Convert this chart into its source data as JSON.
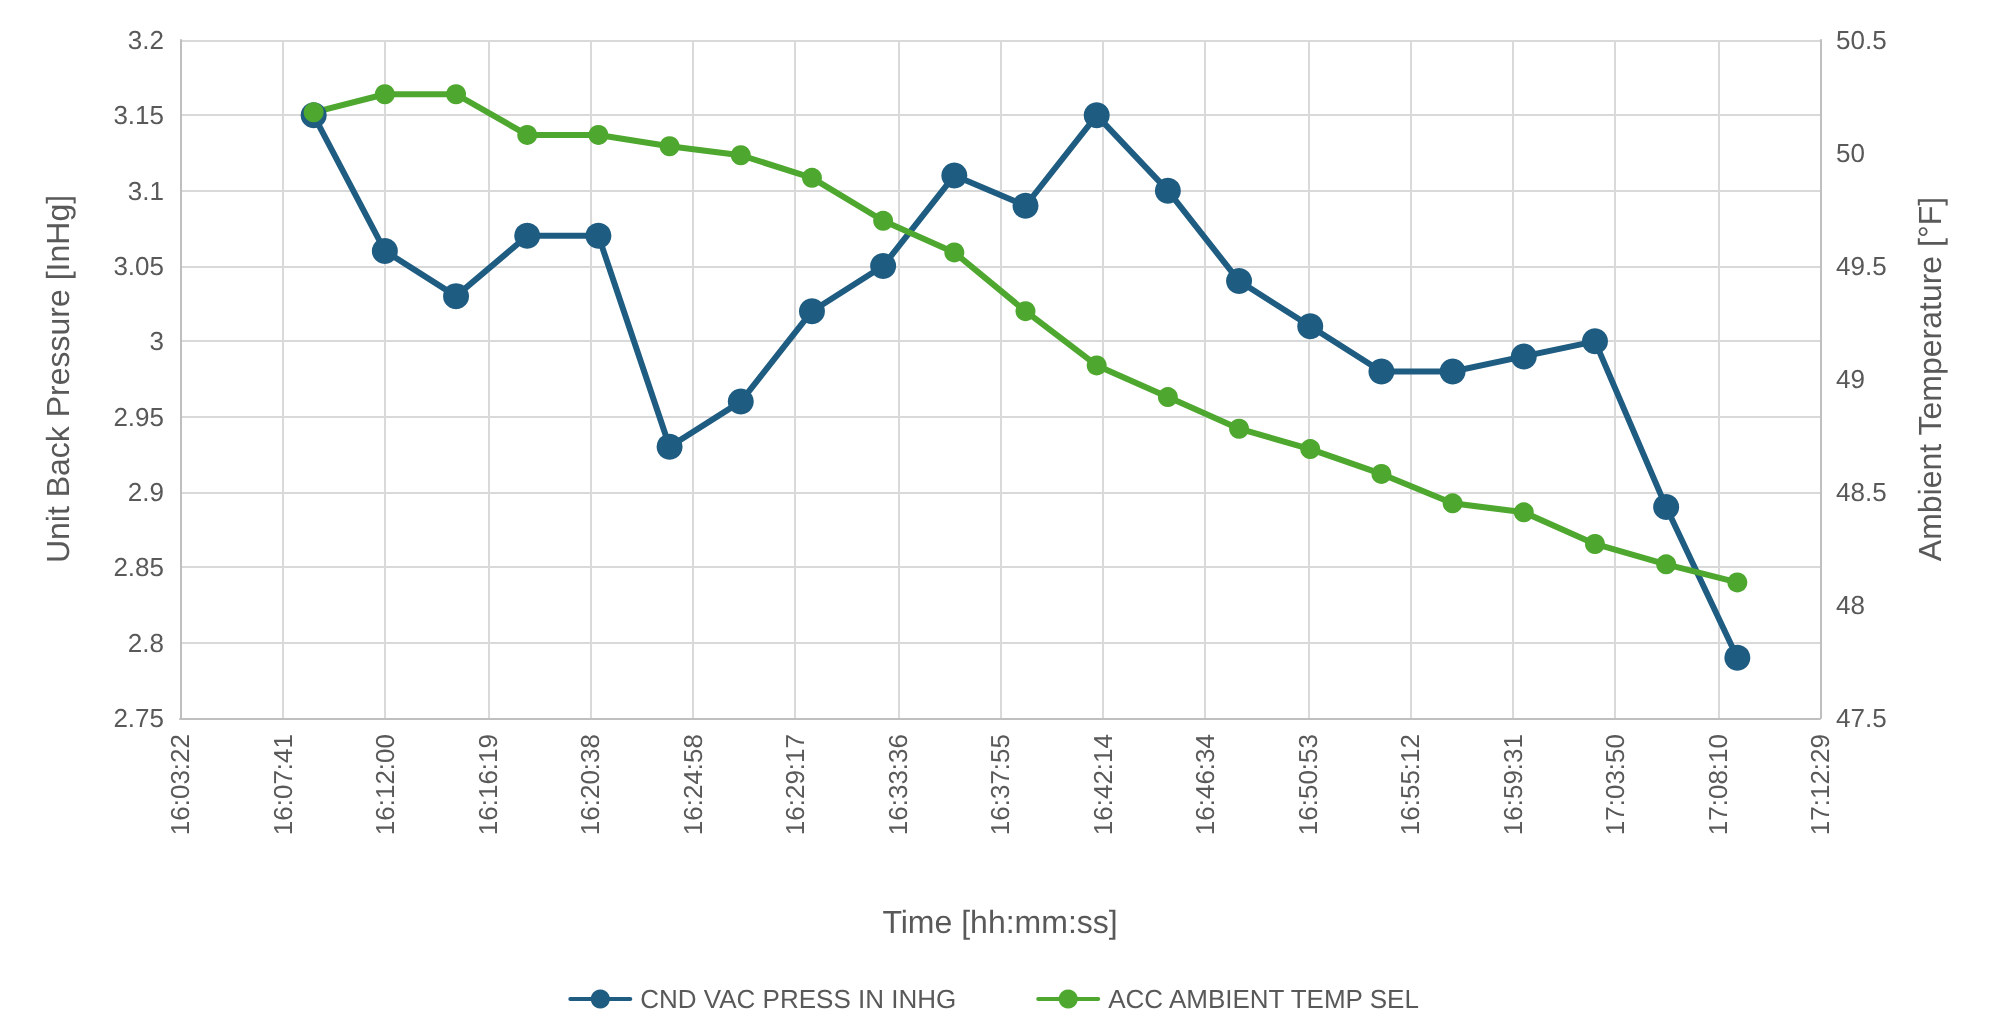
{
  "chart_data": {
    "type": "line",
    "xlabel": "Time [hh:mm:ss]",
    "ylabel": "Unit Back Pressure [InHg]",
    "y2label": "Ambient Temperature [°F]",
    "x": [
      16.15,
      16.2,
      16.25,
      16.3,
      16.35,
      16.4,
      16.45,
      16.5,
      16.55,
      16.6,
      16.65,
      16.7,
      16.75,
      16.8,
      16.85,
      16.9,
      16.95,
      17.0,
      17.05,
      17.1,
      17.15
    ],
    "series": [
      {
        "name": "CND VAC PRESS IN INHG",
        "color": "#1f5c82",
        "values": [
          3.15,
          3.06,
          3.03,
          3.07,
          3.07,
          2.93,
          2.96,
          3.02,
          3.05,
          3.11,
          3.09,
          3.15,
          3.1,
          3.04,
          3.01,
          2.98,
          2.98,
          2.99,
          3.0,
          2.89,
          2.79
        ]
      },
      {
        "name": "ACC AMBIENT TEMP SEL",
        "color": "#4ea72e",
        "axis": "y2",
        "values": [
          50.18,
          50.26,
          50.26,
          50.08,
          50.08,
          50.03,
          49.99,
          49.89,
          49.7,
          49.56,
          49.3,
          49.06,
          48.92,
          48.78,
          48.69,
          48.58,
          48.45,
          48.41,
          48.27,
          48.18,
          48.1
        ]
      }
    ],
    "xlim": [
      16.05611,
      17.20806
    ],
    "xticks": [
      {
        "value": 16.05611,
        "label": "16:03:22"
      },
      {
        "value": 16.12806,
        "label": "16:07:41"
      },
      {
        "value": 16.2,
        "label": "16:12:00"
      },
      {
        "value": 16.27194,
        "label": "16:16:19"
      },
      {
        "value": 16.34389,
        "label": "16:20:38"
      },
      {
        "value": 16.41611,
        "label": "16:24:58"
      },
      {
        "value": 16.48806,
        "label": "16:29:17"
      },
      {
        "value": 16.56,
        "label": "16:33:36"
      },
      {
        "value": 16.63194,
        "label": "16:37:55"
      },
      {
        "value": 16.70389,
        "label": "16:42:14"
      },
      {
        "value": 16.77611,
        "label": "16:46:34"
      },
      {
        "value": 16.84806,
        "label": "16:50:53"
      },
      {
        "value": 16.92,
        "label": "16:55:12"
      },
      {
        "value": 16.99194,
        "label": "16:59:31"
      },
      {
        "value": 17.06389,
        "label": "17:03:50"
      },
      {
        "value": 17.13611,
        "label": "17:08:10"
      },
      {
        "value": 17.20806,
        "label": "17:12:29"
      }
    ],
    "ylim": [
      2.75,
      3.2
    ],
    "yticks": [
      2.75,
      2.8,
      2.85,
      2.9,
      2.95,
      3,
      3.05,
      3.1,
      3.15,
      3.2
    ],
    "y2lim": [
      47.5,
      50.5
    ],
    "y2ticks": [
      47.5,
      48,
      48.5,
      49,
      49.5,
      50,
      50.5
    ],
    "grid": true,
    "legend": "bottom",
    "marker": "circle",
    "line_style": "solid"
  }
}
